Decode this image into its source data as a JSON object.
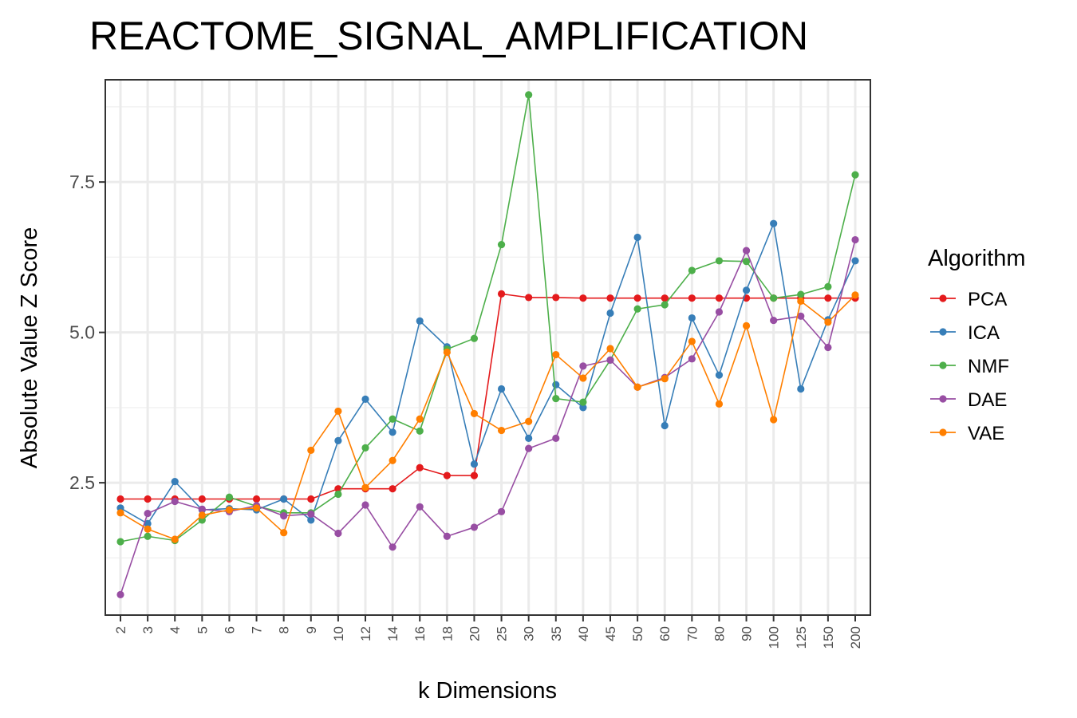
{
  "chart_data": {
    "type": "line",
    "title": "REACTOME_SIGNAL_AMPLIFICATION",
    "xlabel": "k Dimensions",
    "ylabel": "Absolute Value Z Score",
    "categories": [
      "2",
      "3",
      "4",
      "5",
      "6",
      "7",
      "8",
      "9",
      "10",
      "12",
      "14",
      "16",
      "18",
      "20",
      "25",
      "30",
      "35",
      "40",
      "45",
      "50",
      "60",
      "70",
      "80",
      "90",
      "100",
      "125",
      "150",
      "200"
    ],
    "ylim": [
      0.3,
      9.2
    ],
    "yticks": [
      2.5,
      5.0,
      7.5
    ],
    "ytick_labels": [
      "2.5",
      "5.0",
      "7.5"
    ],
    "grid": true,
    "legend": {
      "title": "Algorithm",
      "position": "right"
    },
    "series": [
      {
        "name": "PCA",
        "color": "#e41a1c",
        "values": [
          2.23,
          2.23,
          2.23,
          2.23,
          2.23,
          2.23,
          2.23,
          2.23,
          2.4,
          2.4,
          2.4,
          2.75,
          2.62,
          2.62,
          5.64,
          5.58,
          5.58,
          5.57,
          5.57,
          5.57,
          5.57,
          5.57,
          5.57,
          5.57,
          5.57,
          5.57,
          5.57,
          5.57
        ]
      },
      {
        "name": "ICA",
        "color": "#377eb8",
        "values": [
          2.08,
          1.82,
          2.52,
          2.05,
          2.07,
          2.05,
          2.23,
          1.88,
          3.2,
          3.89,
          3.34,
          5.19,
          4.76,
          2.81,
          4.06,
          3.24,
          4.13,
          3.75,
          5.32,
          6.58,
          3.45,
          5.24,
          4.29,
          5.7,
          6.81,
          4.06,
          5.21,
          6.19
        ]
      },
      {
        "name": "NMF",
        "color": "#4daf4a",
        "values": [
          1.52,
          1.61,
          1.54,
          1.88,
          2.26,
          2.11,
          2.0,
          2.0,
          2.31,
          3.08,
          3.56,
          3.36,
          4.72,
          4.9,
          6.46,
          8.95,
          3.9,
          3.84,
          4.54,
          5.39,
          5.46,
          6.03,
          6.19,
          6.18,
          5.57,
          5.63,
          5.76,
          7.62
        ]
      },
      {
        "name": "DAE",
        "color": "#984ea3",
        "values": [
          0.64,
          1.99,
          2.19,
          2.06,
          2.02,
          2.12,
          1.95,
          1.98,
          1.66,
          2.13,
          1.43,
          2.1,
          1.61,
          1.76,
          2.02,
          3.07,
          3.24,
          4.44,
          4.54,
          4.09,
          4.25,
          4.56,
          5.34,
          6.36,
          5.2,
          5.27,
          4.75,
          6.54
        ]
      },
      {
        "name": "VAE",
        "color": "#ff7f00",
        "values": [
          2.0,
          1.73,
          1.56,
          1.96,
          2.05,
          2.08,
          1.67,
          3.04,
          3.69,
          2.42,
          2.87,
          3.56,
          4.67,
          3.65,
          3.37,
          3.52,
          4.63,
          4.24,
          4.73,
          4.09,
          4.23,
          4.85,
          3.81,
          5.11,
          3.55,
          5.52,
          5.17,
          5.62
        ]
      }
    ]
  }
}
